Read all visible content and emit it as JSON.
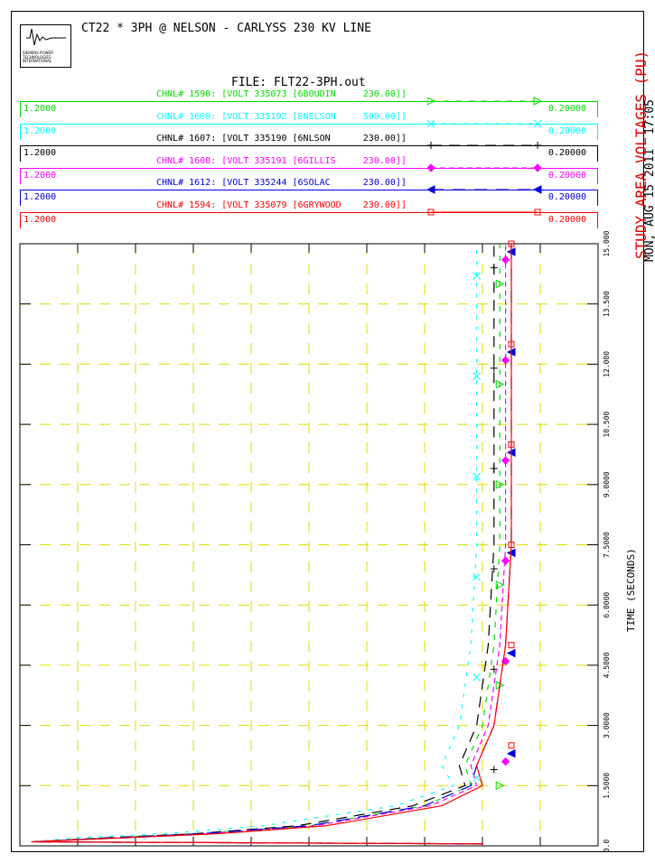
{
  "header": {
    "title": "CT22 * 3PH @ NELSON - CARLYSS 230 KV LINE",
    "file": "FILE: FLT22-3PH.out",
    "date": "MON, AUG 15 2011  17:05",
    "logo_text": [
      "SIEMENS POWER",
      "TECHNOLOGIES",
      "INTERNATIONAL"
    ]
  },
  "colors": {
    "green": "#00dd00",
    "cyan": "#00ffff",
    "black": "#000000",
    "magenta": "#ff00ff",
    "blue": "#0000dd",
    "red": "#ff0000",
    "grid": "#dddd00"
  },
  "channels": [
    {
      "label": "CHNL# 1590: [VOLT 335073 [6BOUDIN     230.00]]",
      "max": "1.2000",
      "min": "0.20000",
      "color": "#00dd00",
      "marker": "tri-right"
    },
    {
      "label": "CHNL# 1609: [VOLT 335192 [8NELSON     500.00]]",
      "max": "1.2000",
      "min": "0.20000",
      "color": "#00ffff",
      "marker": "x"
    },
    {
      "label": "CHNL# 1607: [VOLT 335190 [6NLSON      230.00]]",
      "max": "1.2000",
      "min": "0.20000",
      "color": "#000000",
      "marker": "plus"
    },
    {
      "label": "CHNL# 1608: [VOLT 335191 [6GILLIS     230.00]]",
      "max": "1.2000",
      "min": "0.20000",
      "color": "#ff00ff",
      "marker": "diamond"
    },
    {
      "label": "CHNL# 1612: [VOLT 335244 [6SOLAC      230.00]]",
      "max": "1.2000",
      "min": "0.20000",
      "color": "#0000dd",
      "marker": "tri-left"
    },
    {
      "label": "CHNL# 1594: [VOLT 335079 [6GRYWOOD    230.00]]",
      "max": "1.2000",
      "min": "0.20000",
      "color": "#ff0000",
      "marker": "square"
    }
  ],
  "chart_data": {
    "type": "line",
    "title": "STUDY AREA VOLTAGES (PU)",
    "xlabel": "TIME (SECONDS)",
    "xlim": [
      0,
      15
    ],
    "ylim": [
      0.2,
      1.2
    ],
    "x_ticks": [
      "0.0",
      "1.5000",
      "3.0000",
      "4.5000",
      "6.0000",
      "7.5000",
      "9.0000",
      "10.500",
      "12.000",
      "13.500",
      "15.000"
    ],
    "x": [
      0,
      0.1,
      0.2,
      0.3,
      0.5,
      1.0,
      1.5,
      2.0,
      3.0,
      5.0,
      7.5,
      10.0,
      12.5,
      15.0
    ],
    "series": [
      {
        "name": "CHNL# 1590",
        "values": [
          1.0,
          0.22,
          0.35,
          0.5,
          0.7,
          0.9,
          0.98,
          0.97,
          1.0,
          1.02,
          1.03,
          1.03,
          1.03,
          1.03
        ]
      },
      {
        "name": "CHNL# 1609",
        "values": [
          1.0,
          0.22,
          0.3,
          0.45,
          0.62,
          0.85,
          0.95,
          0.93,
          0.96,
          0.98,
          0.99,
          0.99,
          0.99,
          0.99
        ]
      },
      {
        "name": "CHNL# 1607",
        "values": [
          1.0,
          0.22,
          0.35,
          0.5,
          0.68,
          0.88,
          0.97,
          0.96,
          0.99,
          1.01,
          1.02,
          1.02,
          1.02,
          1.02
        ]
      },
      {
        "name": "CHNL# 1608",
        "values": [
          1.0,
          0.22,
          0.37,
          0.52,
          0.71,
          0.91,
          0.99,
          0.98,
          1.01,
          1.03,
          1.04,
          1.04,
          1.04,
          1.04
        ]
      },
      {
        "name": "CHNL# 1612",
        "values": [
          1.0,
          0.22,
          0.36,
          0.51,
          0.7,
          0.9,
          0.98,
          0.99,
          1.02,
          1.04,
          1.05,
          1.05,
          1.05,
          1.05
        ]
      },
      {
        "name": "CHNL# 1594",
        "values": [
          1.0,
          0.22,
          0.38,
          0.54,
          0.73,
          0.93,
          1.0,
          0.99,
          1.02,
          1.04,
          1.05,
          1.05,
          1.05,
          1.05
        ]
      }
    ]
  }
}
